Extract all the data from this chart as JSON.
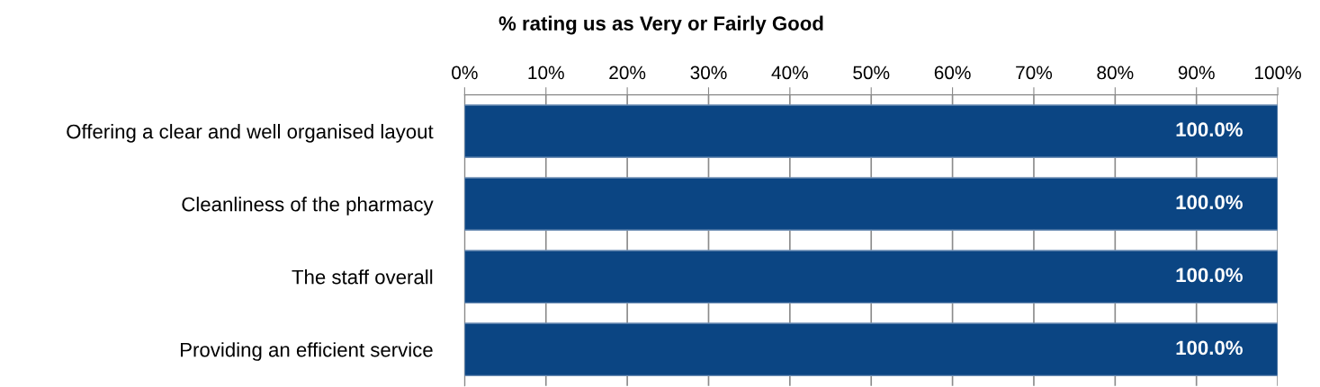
{
  "chart_data": {
    "type": "bar",
    "orientation": "horizontal",
    "title": "% rating us as Very or Fairly Good",
    "categories": [
      "Offering a clear and well organised layout",
      "Cleanliness of the pharmacy",
      "The staff overall",
      "Providing an efficient service"
    ],
    "values": [
      100,
      100,
      100,
      100
    ],
    "color": "#0b4583",
    "value_labels": [
      "100.0%",
      "100.0%",
      "100.0%",
      "100.0%"
    ],
    "xlim": [
      0,
      100
    ],
    "xticks": [
      {
        "value": 0,
        "label": "0%"
      },
      {
        "value": 10,
        "label": "10%"
      },
      {
        "value": 20,
        "label": "20%"
      },
      {
        "value": 30,
        "label": "30%"
      },
      {
        "value": 40,
        "label": "40%"
      },
      {
        "value": 50,
        "label": "50%"
      },
      {
        "value": 60,
        "label": "60%"
      },
      {
        "value": 70,
        "label": "70%"
      },
      {
        "value": 80,
        "label": "80%"
      },
      {
        "value": 90,
        "label": "90%"
      },
      {
        "value": 100,
        "label": "100%"
      }
    ],
    "grid": "x",
    "legend": false
  }
}
